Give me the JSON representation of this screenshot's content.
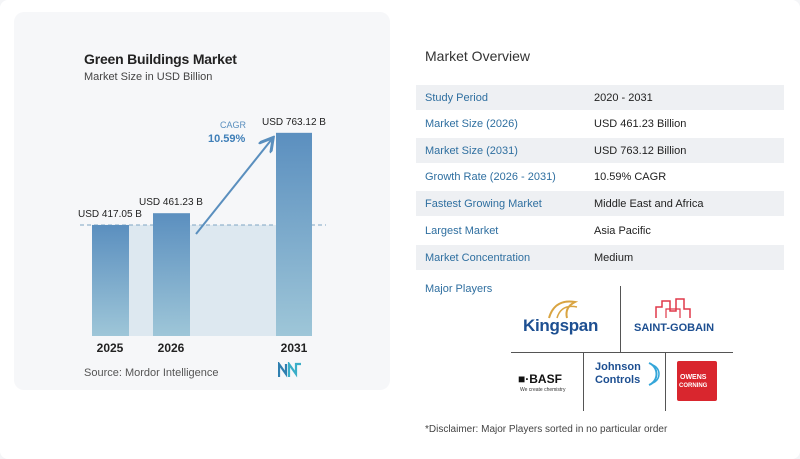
{
  "chart_data": {
    "type": "bar",
    "title": "Green Buildings Market",
    "subtitle": "Market Size in USD Billion",
    "categories": [
      "2025",
      "2026",
      "2031"
    ],
    "values": [
      417.05,
      461.23,
      763.12
    ],
    "value_labels": [
      "USD 417.05 B",
      "USD 461.23 B",
      "USD 763.12 B"
    ],
    "cagr_label": "CAGR",
    "cagr_value": "10.59%",
    "ylim": [
      0,
      800
    ],
    "grid": false,
    "colors": {
      "bar_top": "#5b8fbf",
      "bar_bottom": "#9ec6d8",
      "shade": "#dde8f0",
      "arrow": "#5a8fbe"
    }
  },
  "source": "Source:  Mordor Intelligence",
  "overview": {
    "title": "Market Overview",
    "rows": [
      {
        "label": "Study Period",
        "value": "2020 - 2031"
      },
      {
        "label": "Market Size (2026)",
        "value": "USD 461.23 Billion"
      },
      {
        "label": "Market Size (2031)",
        "value": "USD 763.12 Billion"
      },
      {
        "label": "Growth Rate (2026 - 2031)",
        "value": "10.59% CAGR"
      },
      {
        "label": "Fastest Growing Market",
        "value": "Middle East and Africa"
      },
      {
        "label": "Largest Market",
        "value": "Asia Pacific"
      },
      {
        "label": "Market Concentration",
        "value": "Medium"
      }
    ]
  },
  "players": {
    "title": "Major Players",
    "kingspan": "Kingspan",
    "saint_gobain": "SAINT-GOBAIN",
    "basf": "■·BASF",
    "basf_tag": "We create chemistry",
    "johnson_line1": "Johnson",
    "johnson_line2": "Controls",
    "owens_line1": "OWENS",
    "owens_line2": "CORNING"
  },
  "disclaimer": "*Disclaimer: Major Players sorted in no particular order"
}
